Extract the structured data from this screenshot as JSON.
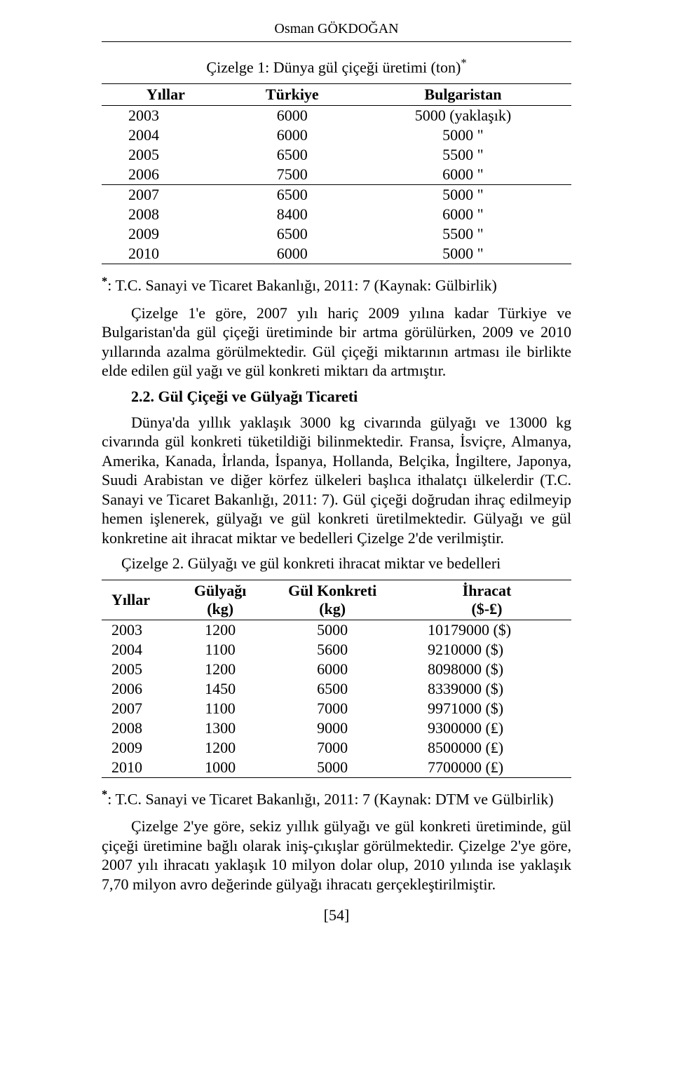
{
  "author_header": "Osman GÖKDOĞAN",
  "table1": {
    "caption": "Çizelge 1: Dünya gül çiçeği üretimi (ton)",
    "caption_sup": "*",
    "columns": [
      "Yıllar",
      "Türkiye",
      "Bulgaristan"
    ],
    "rows": [
      [
        "2003",
        "6000",
        "5000 (yaklaşık)"
      ],
      [
        "2004",
        "6000",
        "5000   \""
      ],
      [
        "2005",
        "6500",
        "5500   \""
      ],
      [
        "2006",
        "7500",
        "6000   \""
      ],
      [
        "2007",
        "6500",
        "5000   \""
      ],
      [
        "2008",
        "8400",
        "6000   \""
      ],
      [
        "2009",
        "6500",
        "5500   \""
      ],
      [
        "2010",
        "6000",
        "5000   \""
      ]
    ],
    "footnote_sup": "*",
    "footnote": ": T.C. Sanayi ve Ticaret Bakanlığı, 2011: 7 (Kaynak: Gülbirlik)"
  },
  "para1": "Çizelge 1'e göre, 2007 yılı hariç 2009 yılına kadar Türkiye ve Bulgaristan'da gül çiçeği üretiminde bir artma görülürken, 2009 ve 2010 yıllarında azalma görülmektedir. Gül çiçeği miktarının artması ile birlikte elde edilen gül yağı ve gül konkreti miktarı da artmıştır.",
  "subheading": "2.2. Gül Çiçeği ve Gülyağı Ticareti",
  "para2": "Dünya'da yıllık yaklaşık 3000 kg civarında gülyağı ve 13000 kg civarında gül konkreti tüketildiği bilinmektedir. Fransa, İsviçre, Almanya, Amerika, Kanada, İrlanda, İspanya, Hollanda, Belçika, İngiltere, Japonya, Suudi Arabistan ve diğer körfez ülkeleri başlıca ithalatçı ülkelerdir (T.C. Sanayi ve Ticaret Bakanlığı, 2011: 7). Gül çiçeği doğrudan ihraç edilmeyip hemen işlenerek, gülyağı ve gül konkreti üretilmektedir. Gülyağı ve gül konkretine ait ihracat miktar ve bedelleri Çizelge 2'de verilmiştir.",
  "table2": {
    "caption": "Çizelge 2.  Gülyağı ve gül konkreti ihracat miktar ve bedelleri",
    "columns": [
      "Yıllar",
      "Gülyağı\n(kg)",
      "Gül Konkreti\n(kg)",
      "İhracat\n($-₤)"
    ],
    "rows": [
      [
        "2003",
        "1200",
        "5000",
        "10179000 ($)"
      ],
      [
        "2004",
        "1100",
        "5600",
        "9210000 ($)"
      ],
      [
        "2005",
        "1200",
        "6000",
        "8098000 ($)"
      ],
      [
        "2006",
        "1450",
        "6500",
        "8339000 ($)"
      ],
      [
        "2007",
        "1100",
        "7000",
        "9971000 ($)"
      ],
      [
        "2008",
        "1300",
        "9000",
        "9300000 (₤)"
      ],
      [
        "2009",
        "1200",
        "7000",
        "8500000 (₤)"
      ],
      [
        "2010",
        "1000",
        "5000",
        "7700000 (₤)"
      ]
    ],
    "footnote_sup": "*",
    "footnote": ": T.C. Sanayi ve Ticaret Bakanlığı, 2011: 7 (Kaynak: DTM ve Gülbirlik)"
  },
  "para3": "Çizelge 2'ye göre, sekiz yıllık gülyağı ve gül konkreti üretiminde, gül çiçeği üretimine bağlı olarak iniş-çıkışlar görülmektedir. Çizelge 2'ye göre, 2007 yılı ihracatı yaklaşık 10 milyon dolar olup, 2010 yılında ise yaklaşık 7,70 milyon avro değerinde gülyağı ihracatı gerçekleştirilmiştir.",
  "page_number": "[54]"
}
